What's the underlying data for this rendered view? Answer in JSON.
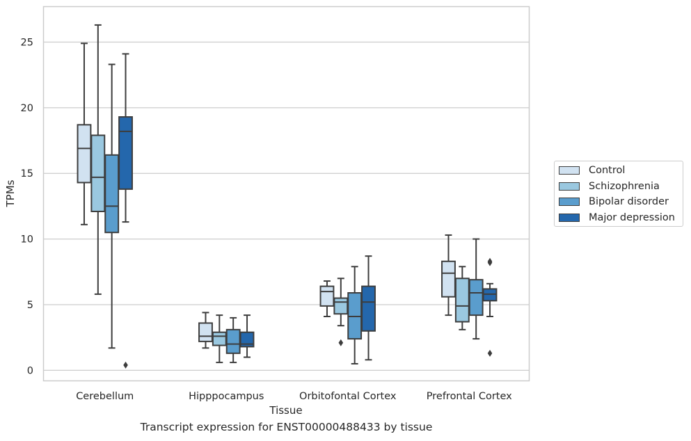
{
  "caption": "Transcript expression for ENST00000488433 by tissue",
  "chart_data": {
    "type": "box",
    "title": "",
    "xlabel": "Tissue",
    "ylabel": "TPMs",
    "ylim": [
      -0.8,
      27.7
    ],
    "yticks": [
      0,
      5,
      10,
      15,
      20,
      25
    ],
    "grid": "horizontal",
    "legend_position": "right",
    "categories": [
      "Cerebellum",
      "Hipppocampus",
      "Orbitofontal Cortex",
      "Prefrontal Cortex"
    ],
    "series": [
      {
        "name": "Control",
        "color": "#d1e2f1",
        "boxes": [
          {
            "whislo": 11.1,
            "q1": 14.3,
            "med": 16.9,
            "q3": 18.7,
            "whishi": 24.9,
            "fliers": []
          },
          {
            "whislo": 1.7,
            "q1": 2.2,
            "med": 2.6,
            "q3": 3.6,
            "whishi": 4.4,
            "fliers": []
          },
          {
            "whislo": 4.1,
            "q1": 4.9,
            "med": 6.0,
            "q3": 6.4,
            "whishi": 6.8,
            "fliers": []
          },
          {
            "whislo": 4.2,
            "q1": 5.6,
            "med": 7.4,
            "q3": 8.3,
            "whishi": 10.3,
            "fliers": []
          }
        ]
      },
      {
        "name": "Schizophrenia",
        "color": "#9ac8e0",
        "boxes": [
          {
            "whislo": 5.8,
            "q1": 12.1,
            "med": 14.7,
            "q3": 17.9,
            "whishi": 26.3,
            "fliers": []
          },
          {
            "whislo": 0.6,
            "q1": 1.9,
            "med": 2.6,
            "q3": 2.9,
            "whishi": 4.2,
            "fliers": []
          },
          {
            "whislo": 3.4,
            "q1": 4.3,
            "med": 5.2,
            "q3": 5.5,
            "whishi": 7.0,
            "fliers": [
              2.1
            ]
          },
          {
            "whislo": 3.1,
            "q1": 3.7,
            "med": 4.9,
            "q3": 7.0,
            "whishi": 7.9,
            "fliers": []
          }
        ]
      },
      {
        "name": "Bipolar disorder",
        "color": "#5a9dcd",
        "boxes": [
          {
            "whislo": 1.7,
            "q1": 10.5,
            "med": 12.5,
            "q3": 16.4,
            "whishi": 23.3,
            "fliers": []
          },
          {
            "whislo": 0.6,
            "q1": 1.3,
            "med": 2.0,
            "q3": 3.1,
            "whishi": 4.0,
            "fliers": []
          },
          {
            "whislo": 0.5,
            "q1": 2.4,
            "med": 4.1,
            "q3": 5.9,
            "whishi": 7.9,
            "fliers": []
          },
          {
            "whislo": 2.4,
            "q1": 4.2,
            "med": 5.9,
            "q3": 6.9,
            "whishi": 10.0,
            "fliers": []
          }
        ]
      },
      {
        "name": "Major depression",
        "color": "#2467ac",
        "boxes": [
          {
            "whislo": 11.3,
            "q1": 13.8,
            "med": 18.2,
            "q3": 19.3,
            "whishi": 24.1,
            "fliers": [
              0.4
            ]
          },
          {
            "whislo": 1.0,
            "q1": 1.8,
            "med": 2.0,
            "q3": 2.9,
            "whishi": 4.2,
            "fliers": []
          },
          {
            "whislo": 0.8,
            "q1": 3.0,
            "med": 5.2,
            "q3": 6.4,
            "whishi": 8.7,
            "fliers": []
          },
          {
            "whislo": 4.1,
            "q1": 5.3,
            "med": 5.8,
            "q3": 6.2,
            "whishi": 6.6,
            "fliers": [
              8.3,
              8.2,
              1.3
            ]
          }
        ]
      }
    ]
  }
}
